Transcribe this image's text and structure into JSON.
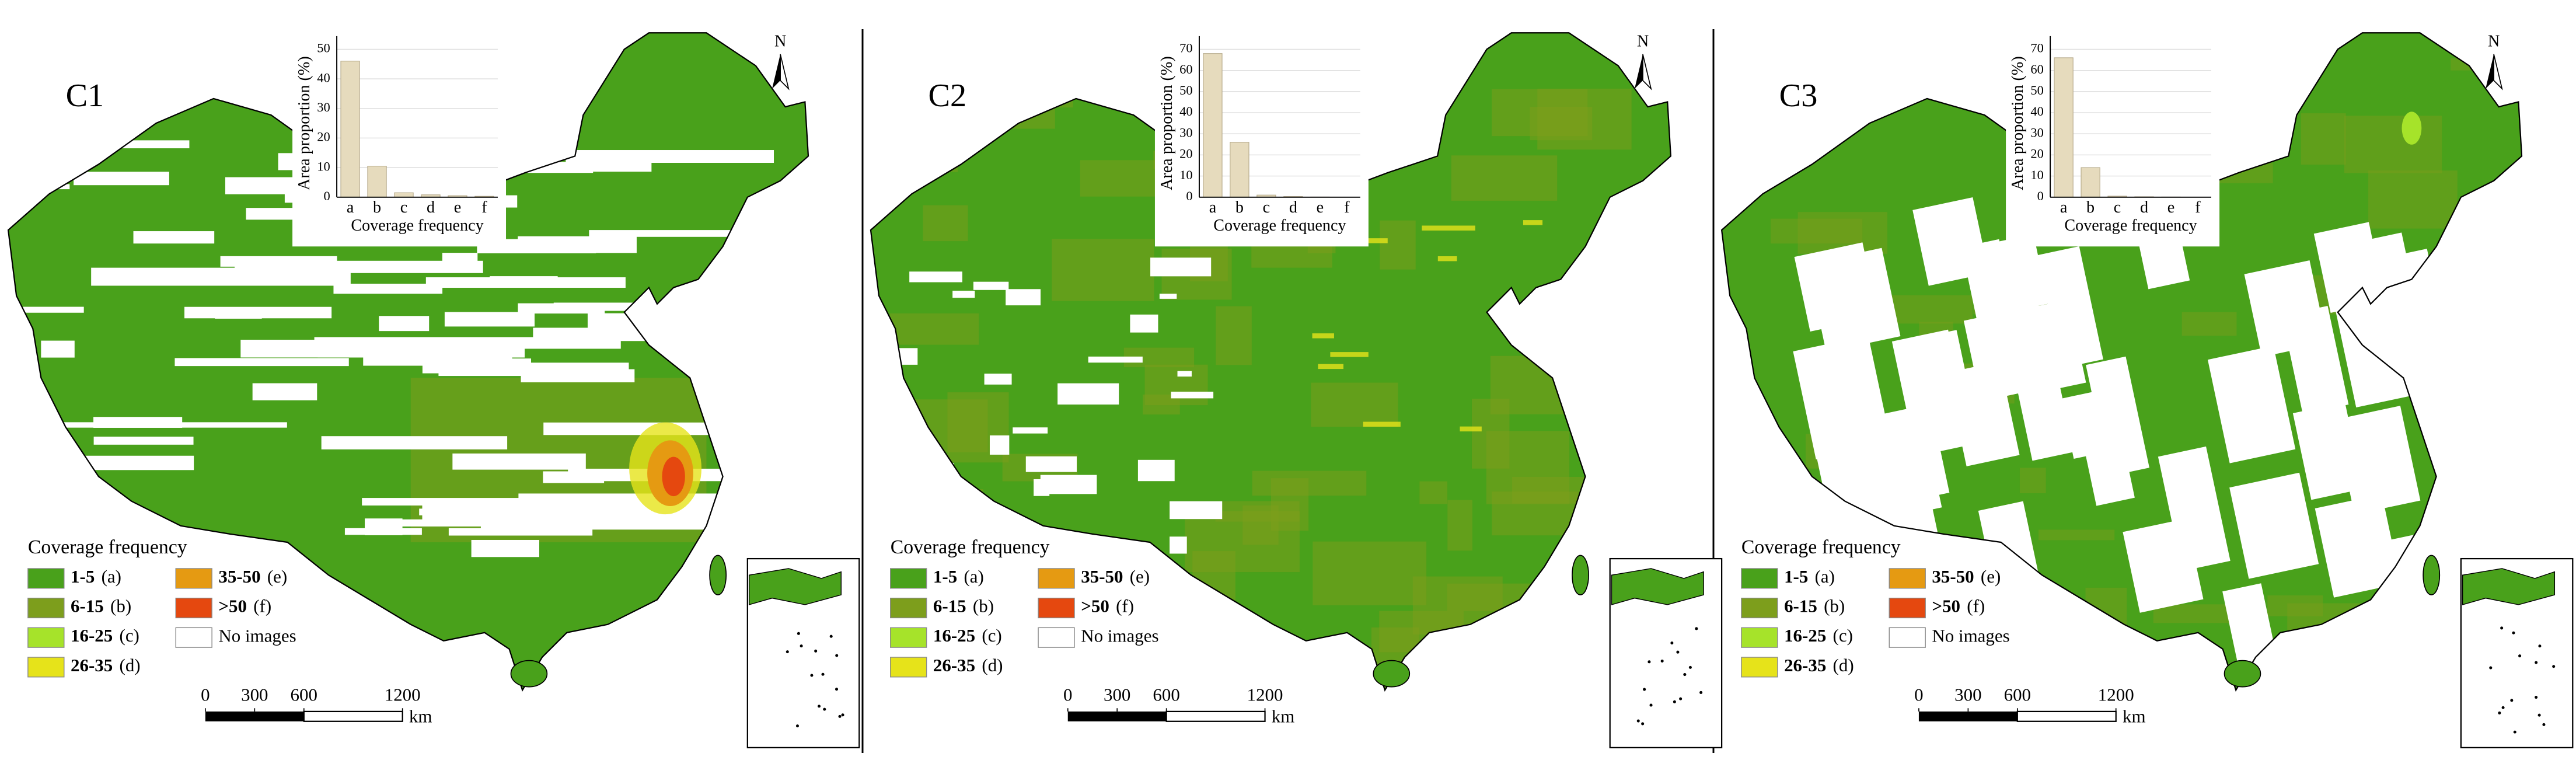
{
  "chart_data": [
    {
      "type": "bar",
      "categories": [
        "a",
        "b",
        "c",
        "d",
        "e",
        "f"
      ],
      "values": [
        46,
        10.5,
        1.5,
        0.8,
        0.5,
        0.3
      ],
      "color": "#e6dbbd",
      "ylim": [
        0,
        50
      ],
      "yticks": [
        0,
        10,
        20,
        30,
        40,
        50
      ],
      "grid": true,
      "xlabel": "Coverage frequency",
      "ylabel": "Area proportion (%)"
    },
    {
      "type": "bar",
      "categories": [
        "a",
        "b",
        "c",
        "d",
        "e",
        "f"
      ],
      "values": [
        68,
        26,
        1,
        0.3,
        0.1,
        0
      ],
      "color": "#e6dbbd",
      "ylim": [
        0,
        70
      ],
      "yticks": [
        0,
        10,
        20,
        30,
        40,
        50,
        60,
        70
      ],
      "grid": true,
      "xlabel": "Coverage frequency",
      "ylabel": "Area proportion (%)"
    },
    {
      "type": "bar",
      "categories": [
        "a",
        "b",
        "c",
        "d",
        "e",
        "f"
      ],
      "values": [
        66,
        14,
        0.5,
        0.2,
        0.1,
        0
      ],
      "color": "#e6dbbd",
      "ylim": [
        0,
        70
      ],
      "yticks": [
        0,
        10,
        20,
        30,
        40,
        50,
        60,
        70
      ],
      "grid": true,
      "xlabel": "Coverage frequency",
      "ylabel": "Area proportion (%)"
    }
  ],
  "maps": [
    {
      "label": "C1",
      "north": "N",
      "legend": {
        "title": "Coverage frequency",
        "items": [
          {
            "range": "1-5",
            "code": "(a)",
            "color": "#49a11b"
          },
          {
            "range": "6-15",
            "code": "(b)",
            "color": "#7d9e1c"
          },
          {
            "range": "16-25",
            "code": "(c)",
            "color": "#a6e32a"
          },
          {
            "range": "26-35",
            "code": "(d)",
            "color": "#e6e31a"
          },
          {
            "range": "35-50",
            "code": "(e)",
            "color": "#e59a12"
          },
          {
            "range": ">50",
            "code": "(f)",
            "color": "#e5480f"
          },
          {
            "label": "No images",
            "color": "#ffffff"
          }
        ]
      },
      "scale": {
        "ticks": [
          0,
          300,
          600,
          1200
        ],
        "unit": "km"
      }
    },
    {
      "label": "C2",
      "north": "N",
      "legend": {
        "title": "Coverage frequency",
        "items": [
          {
            "range": "1-5",
            "code": "(a)",
            "color": "#49a11b"
          },
          {
            "range": "6-15",
            "code": "(b)",
            "color": "#7d9e1c"
          },
          {
            "range": "16-25",
            "code": "(c)",
            "color": "#a6e32a"
          },
          {
            "range": "26-35",
            "code": "(d)",
            "color": "#e6e31a"
          },
          {
            "range": "35-50",
            "code": "(e)",
            "color": "#e59a12"
          },
          {
            "range": ">50",
            "code": "(f)",
            "color": "#e5480f"
          },
          {
            "label": "No images",
            "color": "#ffffff"
          }
        ]
      },
      "scale": {
        "ticks": [
          0,
          300,
          600,
          1200
        ],
        "unit": "km"
      }
    },
    {
      "label": "C3",
      "north": "N",
      "legend": {
        "title": "Coverage frequency",
        "items": [
          {
            "range": "1-5",
            "code": "(a)",
            "color": "#49a11b"
          },
          {
            "range": "6-15",
            "code": "(b)",
            "color": "#7d9e1c"
          },
          {
            "range": "16-25",
            "code": "(c)",
            "color": "#a6e32a"
          },
          {
            "range": "26-35",
            "code": "(d)",
            "color": "#e6e31a"
          },
          {
            "range": "35-50",
            "code": "(e)",
            "color": "#e59a12"
          },
          {
            "range": ">50",
            "code": "(f)",
            "color": "#e5480f"
          },
          {
            "label": "No images",
            "color": "#ffffff"
          }
        ]
      },
      "scale": {
        "ticks": [
          0,
          300,
          600,
          1200
        ],
        "unit": "km"
      }
    }
  ]
}
